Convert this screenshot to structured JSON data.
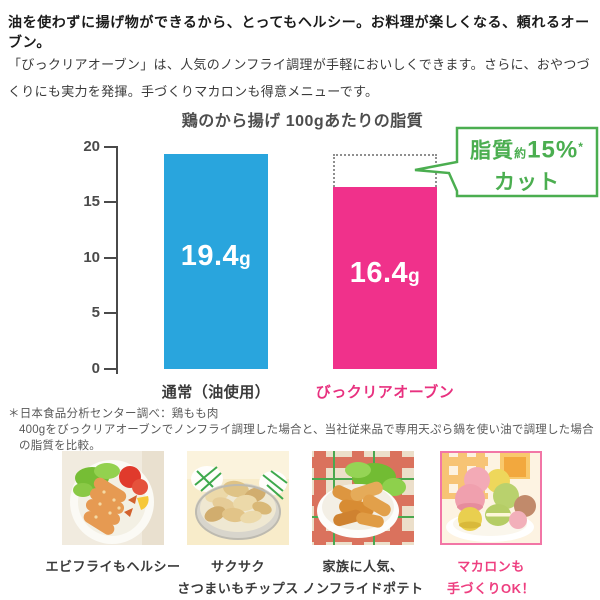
{
  "header": {
    "headline": "油を使わずに揚げ物ができるから、とってもヘルシー。お料理が楽しくなる、頼れるオーブン。",
    "body": "「びっクリアオーブン」は、人気のノンフライ調理が手軽においしくできます。さらに、おやつづくりにも実力を発揮。手づくりマカロンも得意メニューです。"
  },
  "chart_data": {
    "type": "bar",
    "title": "鶏のから揚げ 100gあたりの脂質",
    "categories": [
      "通常（油使用）",
      "びっクリアオーブン"
    ],
    "values": [
      19.4,
      16.4
    ],
    "value_num": [
      "19.4",
      "16.4"
    ],
    "value_unit": "g",
    "bar_colors": [
      "#29a5dd",
      "#f0318b"
    ],
    "category_colors": [
      "#3a3a3a",
      "#e8317f"
    ],
    "ylim": [
      0,
      20
    ],
    "ytick_labels": [
      "20",
      "15",
      "10",
      "5",
      "0"
    ],
    "grid": false,
    "legend": "none",
    "ghost_bar": {
      "category": "びっクリアオーブン",
      "from": 16.4,
      "to": 19.4,
      "style": "dotted",
      "meaning": "通常の脂質量との差"
    },
    "annotation": "脂質約15%カット"
  },
  "callout": {
    "word1": "脂質",
    "approx": "約",
    "percent": "15%",
    "note_mark": "*",
    "line2": "カット",
    "color": "#4bae50"
  },
  "footnote": {
    "line1": "＊日本食品分析センター調べ：鶏もも肉",
    "line2": "400gをびっクリアオーブンでノンフライ調理した場合と、当社従来品で専用天ぷら鍋を使い油で調理した場合の脂質を比較。"
  },
  "gallery": {
    "highlight_color": "#ee3f80",
    "items": [
      {
        "photo": "ebi-fry",
        "caption_line1": "エビフライもヘルシー",
        "caption_line2": ""
      },
      {
        "photo": "sweet-potato-chips",
        "caption_line1": "サクサク",
        "caption_line2": "さつまいもチップス"
      },
      {
        "photo": "non-fried-potato",
        "caption_line1": "家族に人気、",
        "caption_line2": "ノンフライドポテト"
      },
      {
        "photo": "macaron",
        "caption_line1": "マカロンも",
        "caption_line2": "手づくりOK！",
        "highlight": true
      }
    ]
  }
}
